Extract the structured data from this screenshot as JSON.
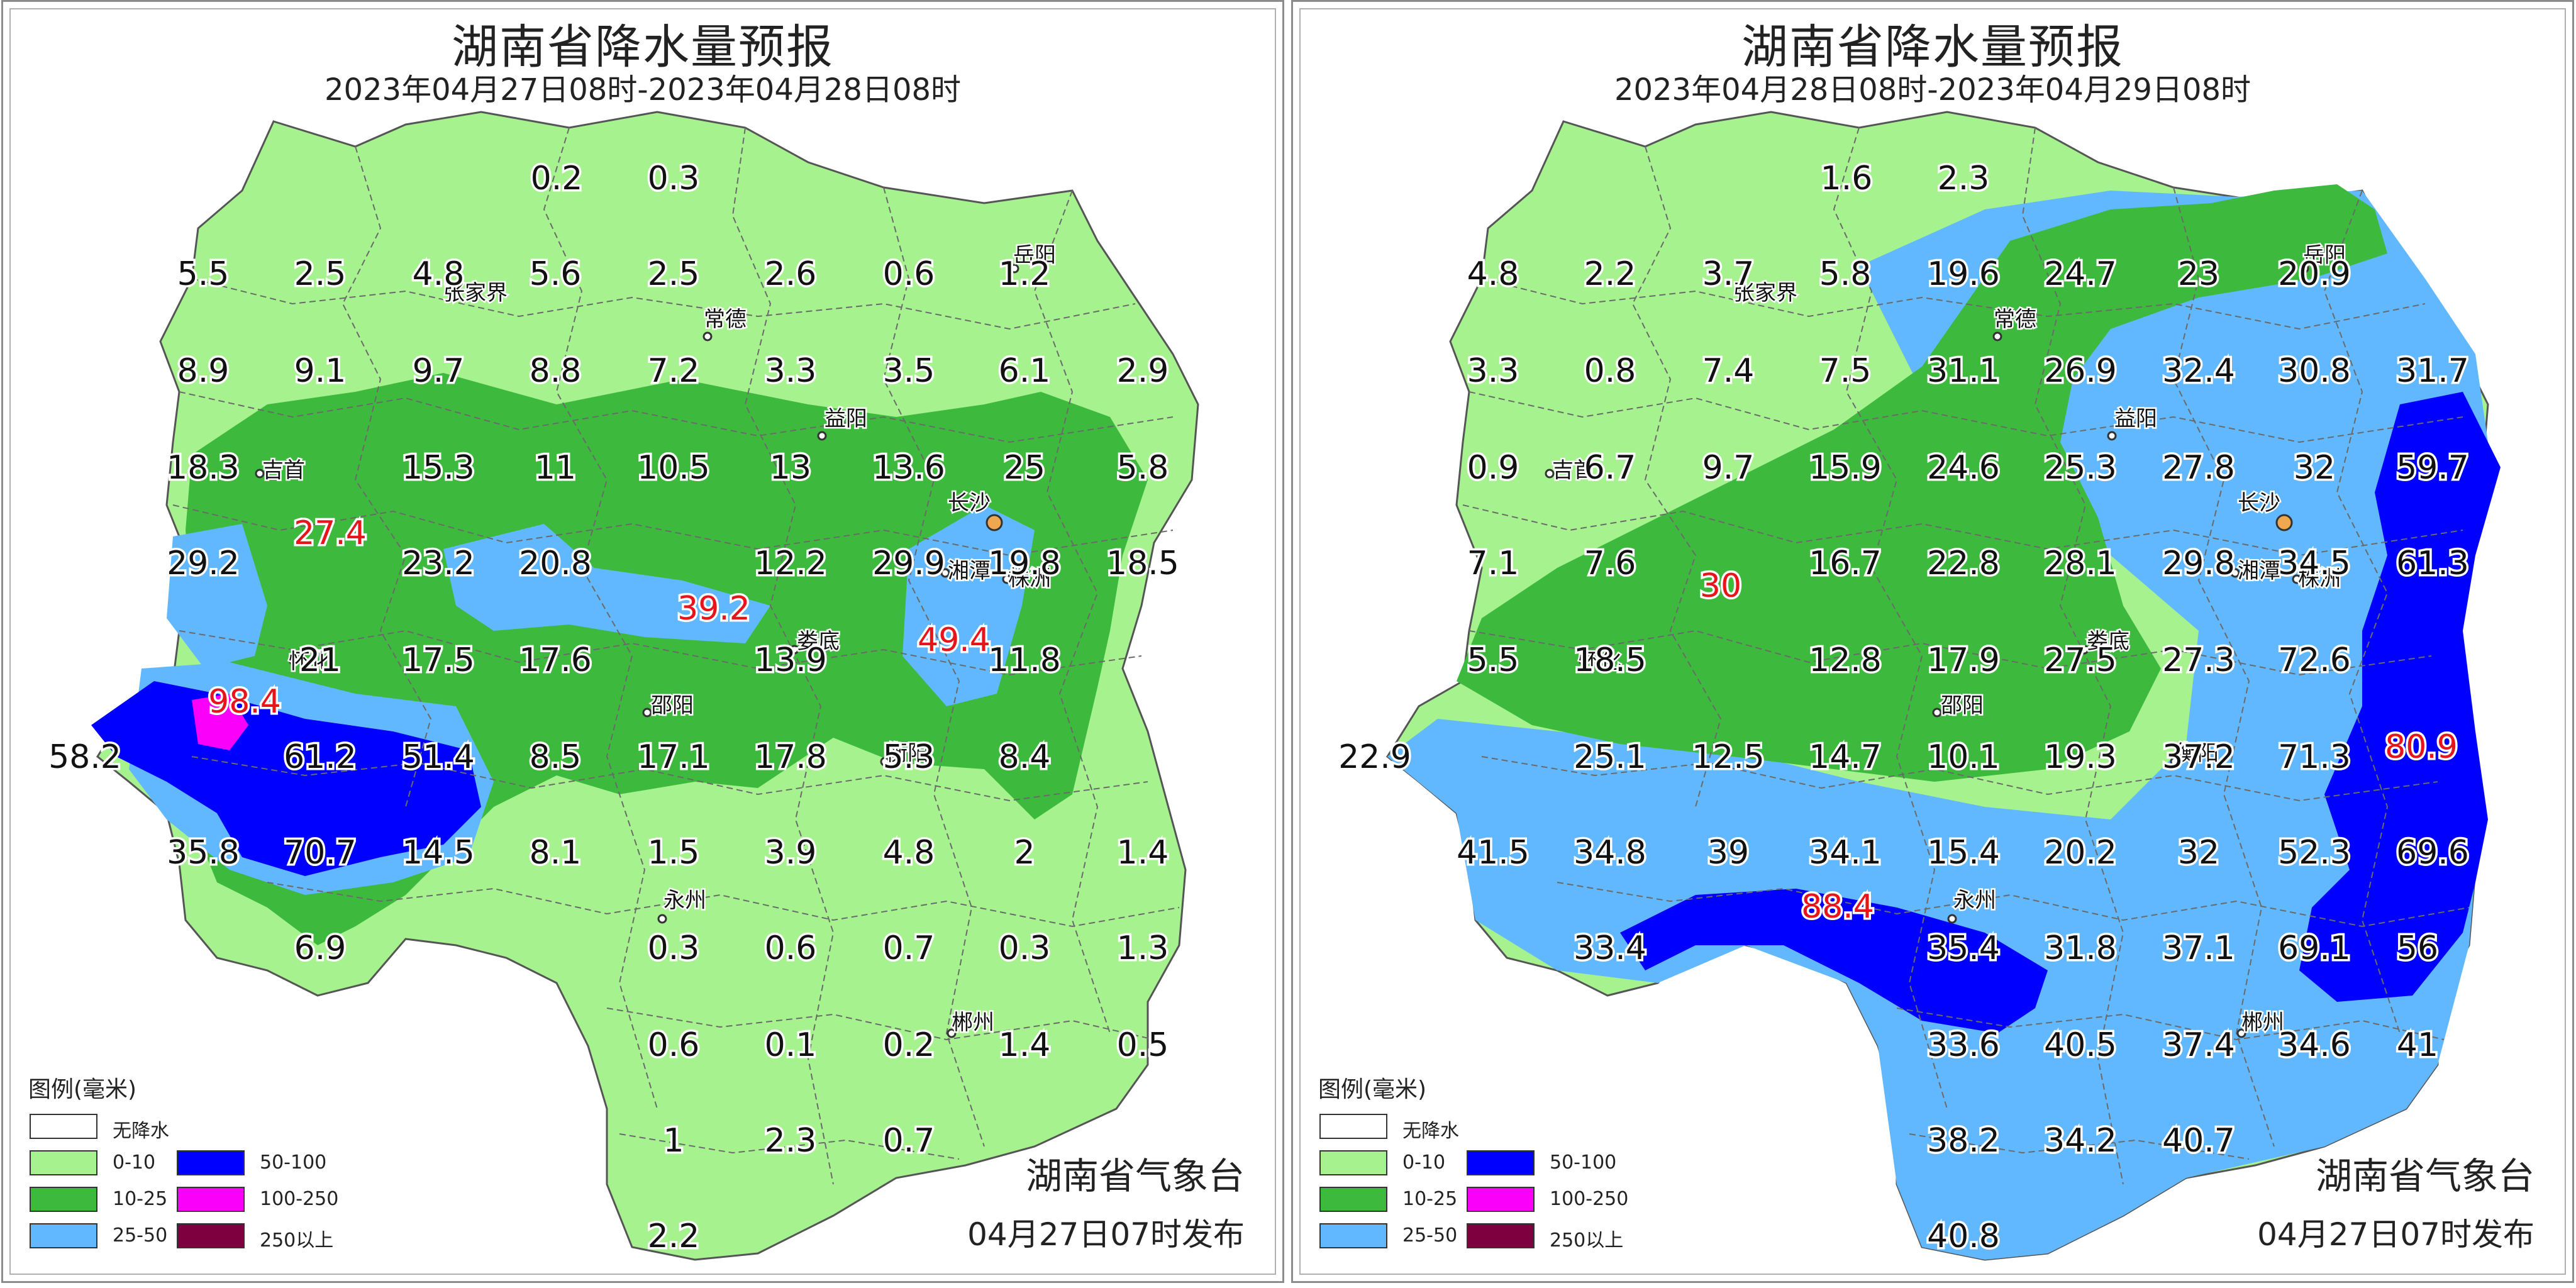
{
  "legend": {
    "title": "图例(毫米)",
    "items": [
      {
        "label": "无降水",
        "color": "#ffffff"
      },
      {
        "label": "0-10",
        "color": "#a6f28f"
      },
      {
        "label": "10-25",
        "color": "#3dba3d"
      },
      {
        "label": "25-50",
        "color": "#61b8ff"
      },
      {
        "label": "50-100",
        "color": "#0000fe"
      },
      {
        "label": "100-250",
        "color": "#fa00fa"
      },
      {
        "label": "250以上",
        "color": "#7f003f"
      }
    ]
  },
  "maps": [
    {
      "title": "湖南省降水量预报",
      "period": "2023年04月27日08时-2023年04月28日08时",
      "issuer": "湖南省气象台",
      "issue_time": "04月27日07时发布",
      "cities": [
        {
          "name": "张家界"
        },
        {
          "name": "常德"
        },
        {
          "name": "益阳"
        },
        {
          "name": "岳阳"
        },
        {
          "name": "吉首"
        },
        {
          "name": "长沙"
        },
        {
          "name": "湘潭"
        },
        {
          "name": "株洲"
        },
        {
          "name": "怀化"
        },
        {
          "name": "娄底"
        },
        {
          "name": "邵阳"
        },
        {
          "name": "衡阳"
        },
        {
          "name": "永州"
        },
        {
          "name": "郴州"
        }
      ],
      "values": [
        {
          "v": "0.2"
        },
        {
          "v": "0.3"
        },
        {
          "v": "5.5"
        },
        {
          "v": "2.5"
        },
        {
          "v": "4.8"
        },
        {
          "v": "5.6"
        },
        {
          "v": "2.5"
        },
        {
          "v": "2.6"
        },
        {
          "v": "0.6"
        },
        {
          "v": "1.2"
        },
        {
          "v": "8.9"
        },
        {
          "v": "9.1"
        },
        {
          "v": "9.7"
        },
        {
          "v": "8.8"
        },
        {
          "v": "7.2"
        },
        {
          "v": "3.3"
        },
        {
          "v": "3.5"
        },
        {
          "v": "6.1"
        },
        {
          "v": "2.9"
        },
        {
          "v": "18.3"
        },
        {
          "v": "15.3"
        },
        {
          "v": "11"
        },
        {
          "v": "10.5"
        },
        {
          "v": "13"
        },
        {
          "v": "13.6"
        },
        {
          "v": "25"
        },
        {
          "v": "5.8"
        },
        {
          "v": "27.4",
          "hi": true
        },
        {
          "v": "29.2"
        },
        {
          "v": "23.2"
        },
        {
          "v": "20.8"
        },
        {
          "v": "12.2"
        },
        {
          "v": "29.9"
        },
        {
          "v": "19.8"
        },
        {
          "v": "18.5"
        },
        {
          "v": "39.2",
          "hi": true
        },
        {
          "v": "21"
        },
        {
          "v": "17.5"
        },
        {
          "v": "17.6"
        },
        {
          "v": "13.9"
        },
        {
          "v": "49.4",
          "hi": true
        },
        {
          "v": "11.8"
        },
        {
          "v": "98.4",
          "hi": true
        },
        {
          "v": "58.2"
        },
        {
          "v": "61.2"
        },
        {
          "v": "51.4"
        },
        {
          "v": "8.5"
        },
        {
          "v": "17.1"
        },
        {
          "v": "17.8"
        },
        {
          "v": "5.3"
        },
        {
          "v": "8.4"
        },
        {
          "v": "35.8"
        },
        {
          "v": "70.7"
        },
        {
          "v": "14.5"
        },
        {
          "v": "8.1"
        },
        {
          "v": "1.5"
        },
        {
          "v": "3.9"
        },
        {
          "v": "4.8"
        },
        {
          "v": "2"
        },
        {
          "v": "1.4"
        },
        {
          "v": "6.9"
        },
        {
          "v": "0.3"
        },
        {
          "v": "0.6"
        },
        {
          "v": "0.7"
        },
        {
          "v": "0.3"
        },
        {
          "v": "1.3"
        },
        {
          "v": "0.6"
        },
        {
          "v": "0.1"
        },
        {
          "v": "0.2"
        },
        {
          "v": "1.4"
        },
        {
          "v": "0.5"
        },
        {
          "v": "1"
        },
        {
          "v": "2.3"
        },
        {
          "v": "0.7"
        },
        {
          "v": "2.2"
        }
      ]
    },
    {
      "title": "湖南省降水量预报",
      "period": "2023年04月28日08时-2023年04月29日08时",
      "issuer": "湖南省气象台",
      "issue_time": "04月27日07时发布",
      "cities": [
        {
          "name": "张家界"
        },
        {
          "name": "常德"
        },
        {
          "name": "益阳"
        },
        {
          "name": "岳阳"
        },
        {
          "name": "吉首"
        },
        {
          "name": "长沙"
        },
        {
          "name": "湘潭"
        },
        {
          "name": "株洲"
        },
        {
          "name": "怀化"
        },
        {
          "name": "娄底"
        },
        {
          "name": "邵阳"
        },
        {
          "name": "衡阳"
        },
        {
          "name": "永州"
        },
        {
          "name": "郴州"
        }
      ],
      "values": [
        {
          "v": "1.6"
        },
        {
          "v": "2.3"
        },
        {
          "v": "4.8"
        },
        {
          "v": "2.2"
        },
        {
          "v": "3.7"
        },
        {
          "v": "5.8"
        },
        {
          "v": "19.6"
        },
        {
          "v": "24.7"
        },
        {
          "v": "23"
        },
        {
          "v": "20.9"
        },
        {
          "v": "3.3"
        },
        {
          "v": "0.8"
        },
        {
          "v": "7.4"
        },
        {
          "v": "7.5"
        },
        {
          "v": "31.1"
        },
        {
          "v": "26.9"
        },
        {
          "v": "32.4"
        },
        {
          "v": "30.8"
        },
        {
          "v": "31.7"
        },
        {
          "v": "0.9"
        },
        {
          "v": "6.7"
        },
        {
          "v": "9.7"
        },
        {
          "v": "15.9"
        },
        {
          "v": "24.6"
        },
        {
          "v": "25.3"
        },
        {
          "v": "27.8"
        },
        {
          "v": "32"
        },
        {
          "v": "59.7"
        },
        {
          "v": "7.1"
        },
        {
          "v": "7.6"
        },
        {
          "v": "30",
          "hi": true
        },
        {
          "v": "16.7"
        },
        {
          "v": "22.8"
        },
        {
          "v": "28.1"
        },
        {
          "v": "29.8"
        },
        {
          "v": "34.5"
        },
        {
          "v": "61.3"
        },
        {
          "v": "5.5"
        },
        {
          "v": "18.5"
        },
        {
          "v": "12.8"
        },
        {
          "v": "17.9"
        },
        {
          "v": "27.5"
        },
        {
          "v": "27.3"
        },
        {
          "v": "72.6"
        },
        {
          "v": "22.9"
        },
        {
          "v": "25.1"
        },
        {
          "v": "12.5"
        },
        {
          "v": "14.7"
        },
        {
          "v": "10.1"
        },
        {
          "v": "19.3"
        },
        {
          "v": "37.2"
        },
        {
          "v": "71.3"
        },
        {
          "v": "80.9",
          "hi": true
        },
        {
          "v": "41.5"
        },
        {
          "v": "34.8"
        },
        {
          "v": "39"
        },
        {
          "v": "34.1"
        },
        {
          "v": "15.4"
        },
        {
          "v": "20.2"
        },
        {
          "v": "32"
        },
        {
          "v": "52.3"
        },
        {
          "v": "69.6"
        },
        {
          "v": "88.4",
          "hi": true
        },
        {
          "v": "33.4"
        },
        {
          "v": "35.4"
        },
        {
          "v": "31.8"
        },
        {
          "v": "37.1"
        },
        {
          "v": "69.1"
        },
        {
          "v": "56"
        },
        {
          "v": "33.6"
        },
        {
          "v": "40.5"
        },
        {
          "v": "37.4"
        },
        {
          "v": "34.6"
        },
        {
          "v": "41"
        },
        {
          "v": "38.2"
        },
        {
          "v": "34.2"
        },
        {
          "v": "40.7"
        },
        {
          "v": "40.8"
        }
      ]
    }
  ]
}
